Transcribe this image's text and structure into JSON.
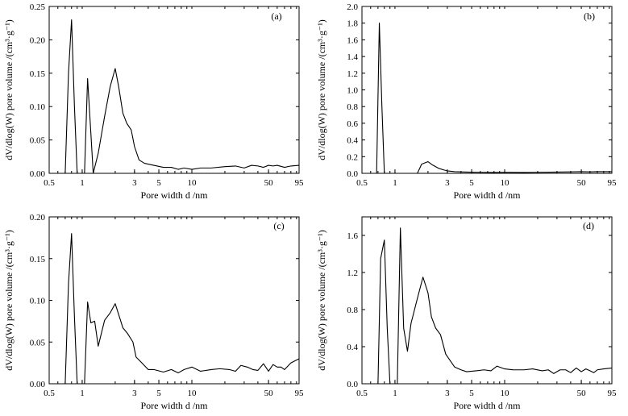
{
  "chart_data": [
    {
      "type": "line",
      "panel": "(a)",
      "xlabel": "Pore width d /nm",
      "ylabel": "dV/dlog(W) pore volume /(cm³·g⁻¹)",
      "x_scale": "log",
      "xlim": [
        0.5,
        95
      ],
      "ylim": [
        0,
        0.25
      ],
      "x_ticks": [
        "0.5",
        "1",
        "3",
        "5",
        "10",
        "50",
        "95"
      ],
      "y_ticks": [
        "0.00",
        "0.05",
        "0.10",
        "0.15",
        "0.20",
        "0.25"
      ],
      "series": [
        {
          "x": [
            0.7,
            0.75,
            0.8,
            0.85,
            0.9,
            1.05,
            1.12,
            1.2,
            1.26,
            1.4,
            1.6,
            1.8,
            2.0,
            2.15,
            2.35,
            2.55,
            2.8,
            3.0,
            3.3,
            3.7,
            4.5,
            5.5,
            6.5,
            7.5,
            8.5,
            10,
            12,
            15,
            20,
            25,
            30,
            35,
            40,
            45,
            50,
            55,
            60,
            70,
            80,
            95
          ],
          "y": [
            0,
            0.15,
            0.23,
            0.1,
            0,
            0,
            0.142,
            0.06,
            0,
            0.03,
            0.085,
            0.13,
            0.157,
            0.13,
            0.09,
            0.075,
            0.065,
            0.04,
            0.02,
            0.015,
            0.012,
            0.009,
            0.009,
            0.006,
            0.008,
            0.006,
            0.008,
            0.008,
            0.01,
            0.011,
            0.008,
            0.012,
            0.011,
            0.009,
            0.012,
            0.011,
            0.012,
            0.009,
            0.011,
            0.012
          ]
        }
      ]
    },
    {
      "type": "line",
      "panel": "(b)",
      "xlabel": "Pore width d /nm",
      "ylabel": "dV/dlog(W) pore volume /(cm³·g⁻¹)",
      "x_scale": "log",
      "xlim": [
        0.5,
        95
      ],
      "ylim": [
        0,
        2.0
      ],
      "x_ticks": [
        "0.5",
        "1",
        "3",
        "5",
        "10",
        "50",
        "95"
      ],
      "y_ticks": [
        "0.0",
        "0.2",
        "0.4",
        "0.6",
        "0.8",
        "1.0",
        "1.2",
        "1.4",
        "1.6",
        "1.8",
        "2.0"
      ],
      "series": [
        {
          "x": [
            0.68,
            0.72,
            0.76,
            0.8,
            1.6,
            1.75,
            2.0,
            2.2,
            2.5,
            2.8,
            3.0,
            3.5,
            4.5,
            6,
            8,
            10,
            15,
            20,
            30,
            40,
            50,
            60,
            70,
            80,
            95
          ],
          "y": [
            0,
            1.8,
            0.8,
            0,
            0,
            0.11,
            0.14,
            0.1,
            0.06,
            0.04,
            0.03,
            0.02,
            0.015,
            0.012,
            0.01,
            0.012,
            0.01,
            0.012,
            0.015,
            0.018,
            0.02,
            0.018,
            0.02,
            0.02,
            0.02
          ]
        }
      ]
    },
    {
      "type": "line",
      "panel": "(c)",
      "xlabel": "Pore width d /nm",
      "ylabel": "dV/dlog(W) pore volume /(cm³·g⁻¹)",
      "x_scale": "log",
      "xlim": [
        0.5,
        95
      ],
      "ylim": [
        0,
        0.2
      ],
      "x_ticks": [
        "0.5",
        "1",
        "3",
        "5",
        "10",
        "50",
        "95"
      ],
      "y_ticks": [
        "0.00",
        "0.05",
        "0.10",
        "0.15",
        "0.20"
      ],
      "series": [
        {
          "x": [
            0.7,
            0.75,
            0.8,
            0.85,
            0.9,
            1.05,
            1.12,
            1.2,
            1.3,
            1.4,
            1.6,
            1.8,
            2.0,
            2.15,
            2.35,
            2.6,
            2.9,
            3.1,
            3.5,
            4.0,
            4.5,
            5.5,
            6.5,
            7.5,
            8.5,
            10,
            12,
            15,
            18,
            22,
            25,
            28,
            32,
            36,
            40,
            45,
            50,
            55,
            60,
            65,
            70,
            80,
            95
          ],
          "y": [
            0,
            0.12,
            0.18,
            0.08,
            0,
            0,
            0.098,
            0.073,
            0.075,
            0.045,
            0.076,
            0.085,
            0.096,
            0.083,
            0.067,
            0.06,
            0.05,
            0.032,
            0.025,
            0.017,
            0.017,
            0.014,
            0.017,
            0.013,
            0.017,
            0.02,
            0.015,
            0.017,
            0.018,
            0.017,
            0.015,
            0.022,
            0.02,
            0.017,
            0.016,
            0.024,
            0.015,
            0.023,
            0.02,
            0.02,
            0.017,
            0.025,
            0.03
          ]
        }
      ]
    },
    {
      "type": "line",
      "panel": "(d)",
      "xlabel": "Pore width d /nm",
      "ylabel": "dV/dlog(W) pore volume /(cm³·g⁻¹)",
      "x_scale": "log",
      "xlim": [
        0.5,
        95
      ],
      "ylim": [
        0,
        1.8
      ],
      "x_ticks": [
        "0.5",
        "1",
        "3",
        "5",
        "10",
        "50",
        "95"
      ],
      "y_ticks": [
        "0.0",
        "0.4",
        "0.8",
        "1.2",
        "1.6"
      ],
      "series": [
        {
          "x": [
            0.7,
            0.74,
            0.8,
            0.85,
            0.9,
            1.05,
            1.12,
            1.2,
            1.3,
            1.4,
            1.6,
            1.8,
            2.0,
            2.15,
            2.35,
            2.6,
            2.9,
            3.1,
            3.5,
            4.0,
            4.5,
            5.5,
            6.5,
            7.5,
            8.5,
            10,
            12,
            15,
            18,
            22,
            25,
            28,
            32,
            36,
            40,
            45,
            50,
            55,
            60,
            65,
            70,
            80,
            95
          ],
          "y": [
            0,
            1.35,
            1.55,
            0.6,
            0,
            0,
            1.68,
            0.6,
            0.35,
            0.65,
            0.92,
            1.15,
            0.98,
            0.72,
            0.6,
            0.53,
            0.32,
            0.27,
            0.18,
            0.15,
            0.13,
            0.14,
            0.15,
            0.14,
            0.19,
            0.16,
            0.15,
            0.15,
            0.16,
            0.14,
            0.15,
            0.11,
            0.15,
            0.15,
            0.12,
            0.17,
            0.13,
            0.16,
            0.14,
            0.12,
            0.15,
            0.16,
            0.17
          ]
        }
      ]
    }
  ]
}
